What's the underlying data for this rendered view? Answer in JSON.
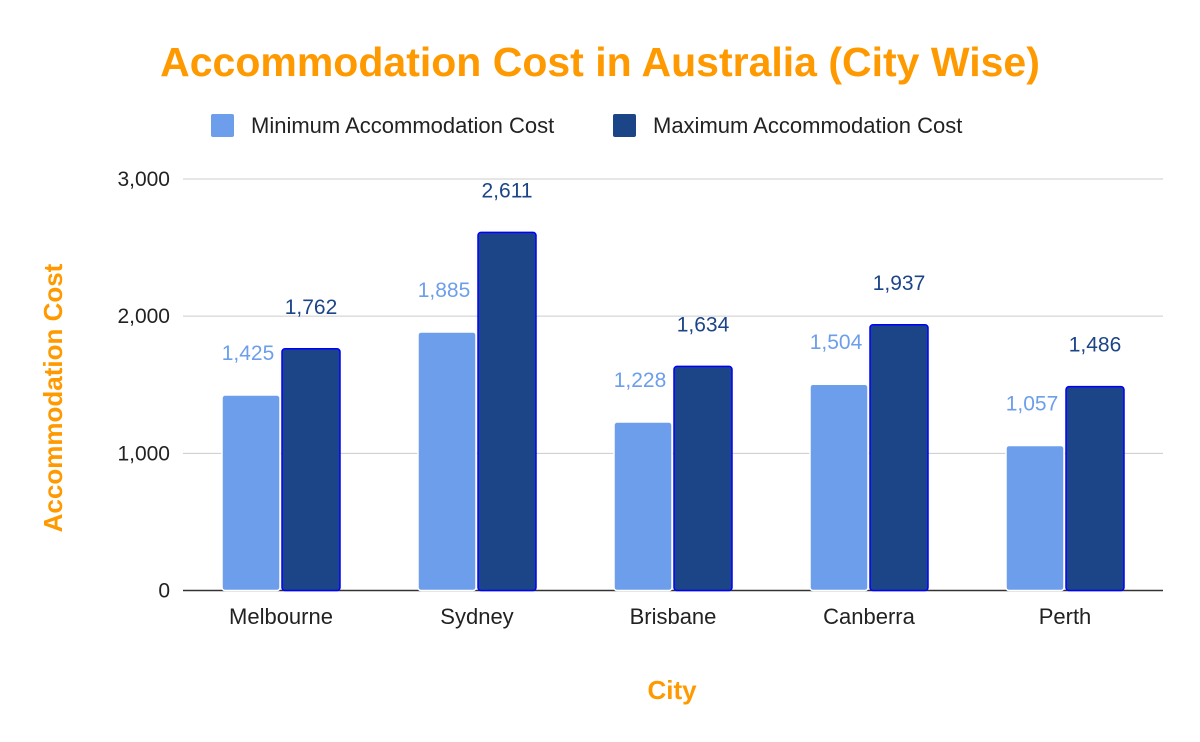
{
  "chart_data": {
    "type": "bar",
    "title": "Accommodation Cost in Australia (City Wise)",
    "xlabel": "City",
    "ylabel": "Accommodation Cost",
    "categories": [
      "Melbourne",
      "Sydney",
      "Brisbane",
      "Canberra",
      "Perth"
    ],
    "series": [
      {
        "name": "Minimum Accommodation Cost",
        "values": [
          1425,
          1885,
          1228,
          1504,
          1057
        ],
        "value_labels": [
          "1,425",
          "1,885",
          "1,228",
          "1,504",
          "1,057"
        ],
        "color": "#6d9eeb"
      },
      {
        "name": "Maximum Accommodation Cost",
        "values": [
          1762,
          2611,
          1634,
          1937,
          1486
        ],
        "value_labels": [
          "1,762",
          "2,611",
          "1,634",
          "1,937",
          "1,486"
        ],
        "color": "#1c4587"
      }
    ],
    "ylim": [
      0,
      3000
    ],
    "yticks": [
      0,
      1000,
      2000,
      3000
    ],
    "ytick_labels": [
      "0",
      "1,000",
      "2,000",
      "3,000"
    ],
    "grid": true,
    "legend_position": "top",
    "title_color": "#ff9900",
    "axis_title_color": "#ff9900",
    "bar_outline_color": "#0000ff"
  }
}
